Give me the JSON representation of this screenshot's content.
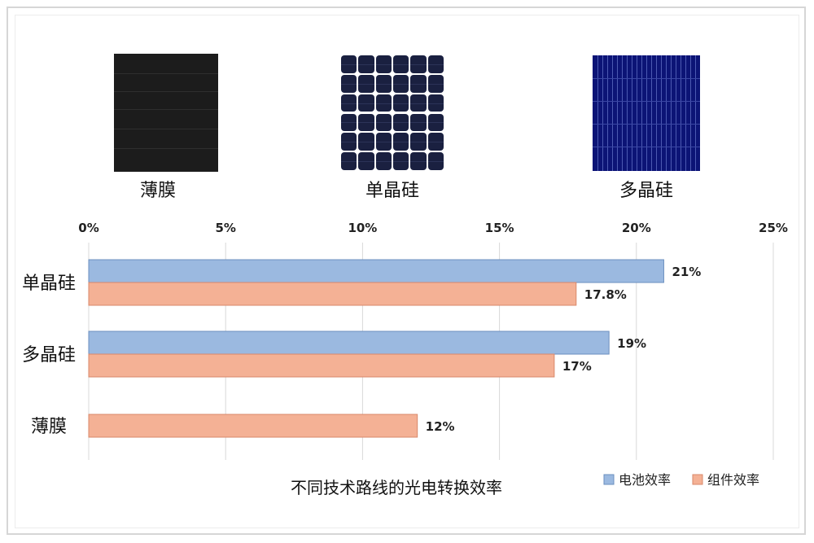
{
  "images": [
    {
      "label": "薄膜"
    },
    {
      "label": "单晶硅"
    },
    {
      "label": "多晶硅"
    }
  ],
  "colors": {
    "cell": "#9bb9e0",
    "cell_stroke": "#6b8fbf",
    "module": "#f4b195",
    "module_stroke": "#d9886a",
    "grid": "#d8d8d8"
  },
  "chart_data": {
    "type": "bar",
    "orientation": "horizontal",
    "title": "不同技术路线的光电转换效率",
    "categories": [
      "单晶硅",
      "多晶硅",
      "薄膜"
    ],
    "series": [
      {
        "name": "电池效率",
        "values": [
          21,
          19,
          null
        ],
        "labels": [
          "21%",
          "19%",
          ""
        ]
      },
      {
        "name": "组件效率",
        "values": [
          17.8,
          17,
          12
        ],
        "labels": [
          "17.8%",
          "17%",
          "12%"
        ]
      }
    ],
    "xlim": [
      0,
      25
    ],
    "xticks": [
      "0%",
      "5%",
      "10%",
      "15%",
      "20%",
      "25%"
    ],
    "xaxis_position": "top",
    "grid": true,
    "legend_position": "bottom-right"
  }
}
